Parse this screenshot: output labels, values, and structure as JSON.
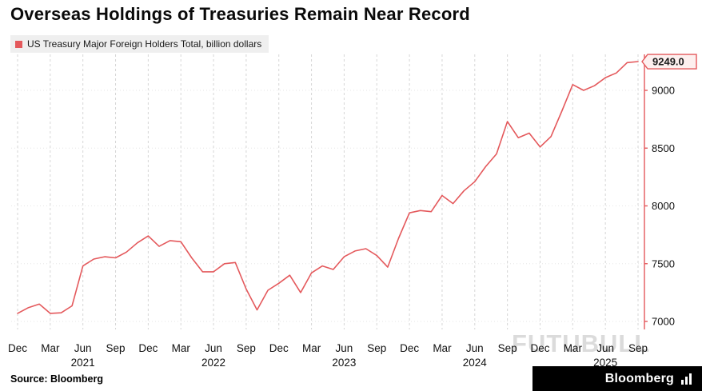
{
  "title": "Overseas Holdings of Treasuries Remain Near Record",
  "legend": {
    "label": "US Treasury Major Foreign Holders Total, billion dollars",
    "marker_color": "#e4595c"
  },
  "source": "Source: Bloomberg",
  "brand": {
    "name": "Bloomberg"
  },
  "watermark": "FUTUBULL",
  "chart_data": {
    "type": "line",
    "title": "Overseas Holdings of Treasuries Remain Near Record",
    "series_name": "US Treasury Major Foreign Holders Total",
    "unit": "billion dollars",
    "line_color": "#e4595c",
    "grid": "vertical-dashed",
    "legend_position": "top-left",
    "y_axis_side": "right",
    "ylim": [
      6950,
      9320
    ],
    "y_ticks": [
      7000,
      7500,
      8000,
      8500,
      9000
    ],
    "last_value": 9249.0,
    "last_value_label": "9249.0",
    "x": [
      "2020-12",
      "2021-01",
      "2021-02",
      "2021-03",
      "2021-04",
      "2021-05",
      "2021-06",
      "2021-07",
      "2021-08",
      "2021-09",
      "2021-10",
      "2021-11",
      "2021-12",
      "2022-01",
      "2022-02",
      "2022-03",
      "2022-04",
      "2022-05",
      "2022-06",
      "2022-07",
      "2022-08",
      "2022-09",
      "2022-10",
      "2022-11",
      "2022-12",
      "2023-01",
      "2023-02",
      "2023-03",
      "2023-04",
      "2023-05",
      "2023-06",
      "2023-07",
      "2023-08",
      "2023-09",
      "2023-10",
      "2023-11",
      "2023-12",
      "2024-01",
      "2024-02",
      "2024-03",
      "2024-04",
      "2024-05",
      "2024-06",
      "2024-07",
      "2024-08",
      "2024-09",
      "2024-10",
      "2024-11",
      "2024-12",
      "2025-01",
      "2025-02",
      "2025-03",
      "2025-04",
      "2025-05",
      "2025-06",
      "2025-07",
      "2025-08",
      "2025-09"
    ],
    "values": [
      7070,
      7120,
      7150,
      7070,
      7075,
      7135,
      7480,
      7540,
      7560,
      7550,
      7600,
      7680,
      7740,
      7650,
      7700,
      7690,
      7550,
      7430,
      7430,
      7500,
      7510,
      7280,
      7100,
      7270,
      7330,
      7400,
      7250,
      7420,
      7480,
      7450,
      7560,
      7610,
      7630,
      7570,
      7470,
      7720,
      7940,
      7960,
      7950,
      8090,
      8020,
      8130,
      8210,
      8340,
      8450,
      8730,
      8590,
      8630,
      8510,
      8600,
      8820,
      9050,
      9000,
      9040,
      9110,
      9150,
      9240,
      9249
    ],
    "x_tick_indices": [
      0,
      3,
      6,
      9,
      12,
      15,
      18,
      21,
      24,
      27,
      30,
      33,
      36,
      39,
      42,
      45,
      48,
      51,
      54,
      57
    ],
    "x_tick_labels": [
      "Dec",
      "Mar",
      "Jun",
      "Sep",
      "Dec",
      "Mar",
      "Jun",
      "Sep",
      "Dec",
      "Mar",
      "Jun",
      "Sep",
      "Dec",
      "Mar",
      "Jun",
      "Sep",
      "Dec",
      "Mar",
      "Jun",
      "Sep"
    ],
    "year_labels": [
      {
        "label": "2021",
        "index": 6
      },
      {
        "label": "2022",
        "index": 18
      },
      {
        "label": "2023",
        "index": 30
      },
      {
        "label": "2024",
        "index": 42
      },
      {
        "label": "2025",
        "index": 54
      }
    ]
  }
}
